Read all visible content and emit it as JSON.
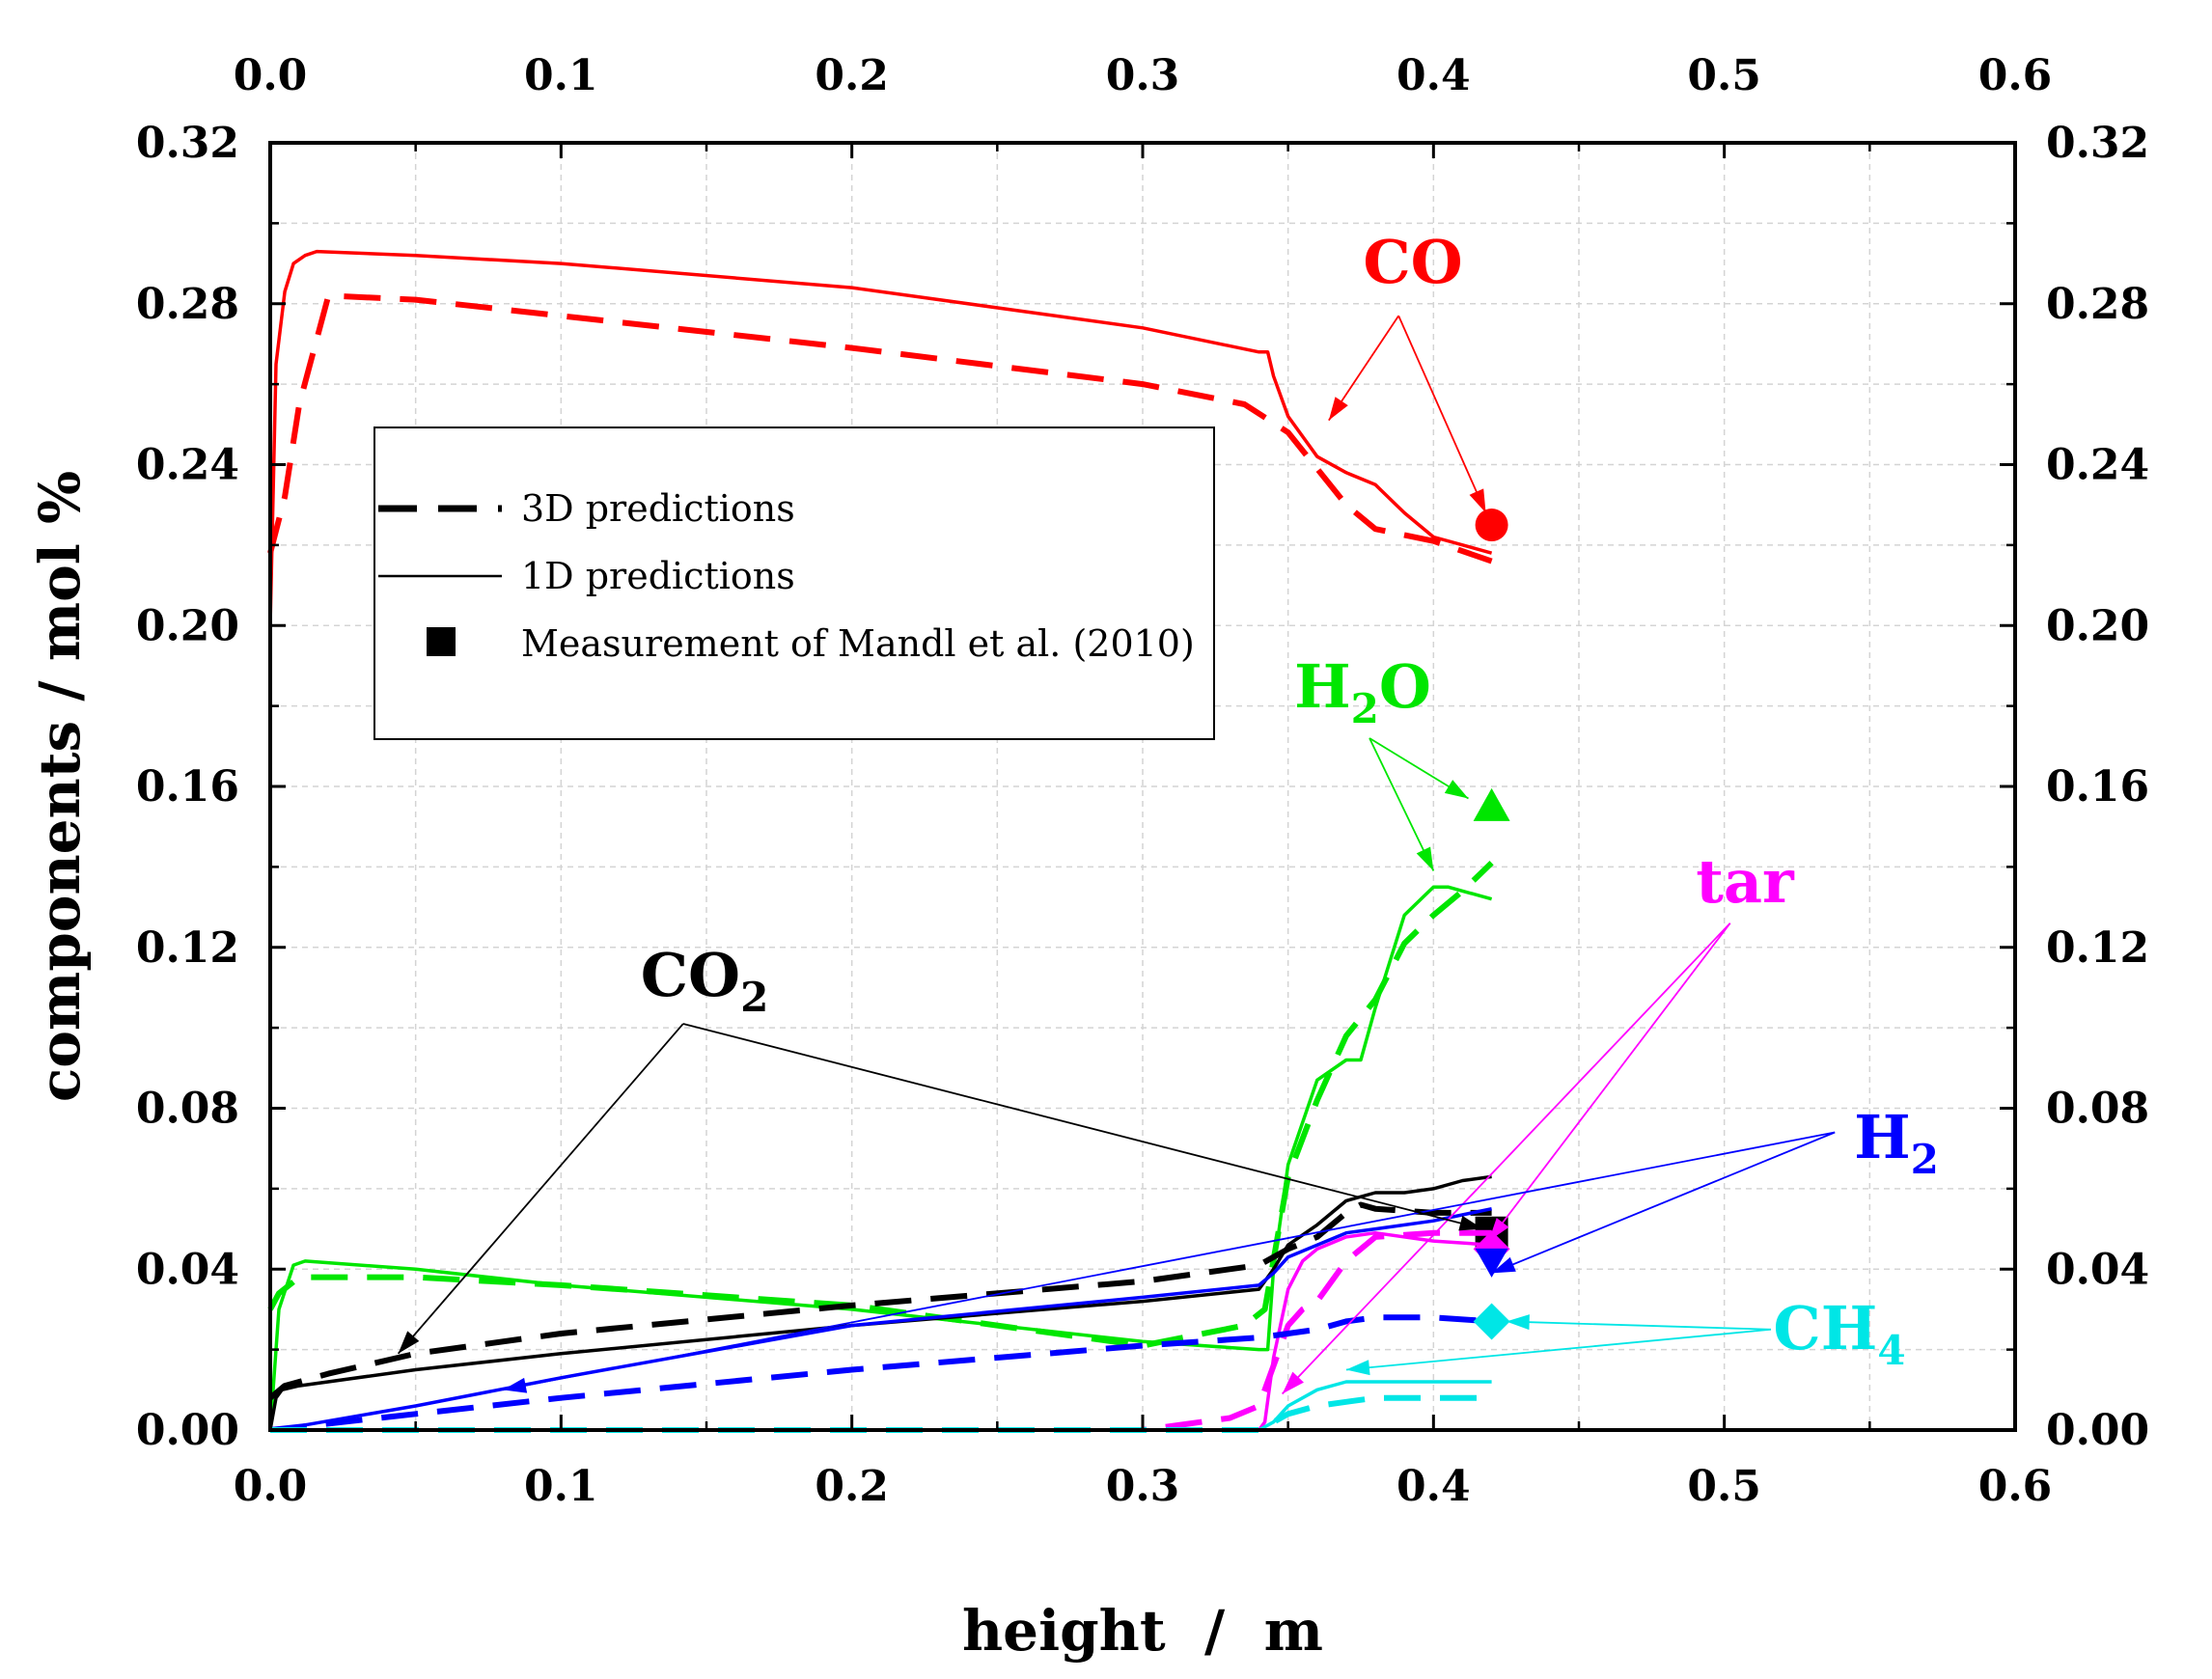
{
  "chart_data": {
    "type": "line",
    "xlabel": "height  /  m",
    "ylabel": "components  /  mol %",
    "xlim": [
      0.0,
      0.6
    ],
    "ylim": [
      0.0,
      0.32
    ],
    "x_ticks": [
      "0.0",
      "0.1",
      "0.2",
      "0.3",
      "0.4",
      "0.5",
      "0.6"
    ],
    "y_ticks": [
      "0.00",
      "0.04",
      "0.08",
      "0.12",
      "0.16",
      "0.20",
      "0.24",
      "0.28",
      "0.32"
    ],
    "grid": true,
    "legend": {
      "position": "upper-left",
      "entries": [
        "3D predictions",
        "1D predictions",
        "Measurement of Mandl et al. (2010)"
      ]
    },
    "series": [
      {
        "name": "CO",
        "color": "#ff0000",
        "label": "CO",
        "label_sub": "",
        "x3d": [
          0.0,
          0.005,
          0.01,
          0.02,
          0.05,
          0.1,
          0.2,
          0.3,
          0.335,
          0.35,
          0.37,
          0.38,
          0.4,
          0.42
        ],
        "y3d": [
          0.218,
          0.232,
          0.255,
          0.282,
          0.281,
          0.277,
          0.269,
          0.26,
          0.255,
          0.248,
          0.23,
          0.224,
          0.221,
          0.216
        ],
        "x1d": [
          0.0,
          0.002,
          0.005,
          0.008,
          0.012,
          0.016,
          0.05,
          0.1,
          0.2,
          0.3,
          0.34,
          0.343,
          0.345,
          0.35,
          0.36,
          0.37,
          0.38,
          0.39,
          0.4,
          0.42
        ],
        "y1d": [
          0.2,
          0.265,
          0.283,
          0.29,
          0.292,
          0.293,
          0.292,
          0.29,
          0.284,
          0.274,
          0.268,
          0.268,
          0.262,
          0.252,
          0.242,
          0.238,
          0.235,
          0.228,
          0.222,
          0.218
        ],
        "meas_x": 0.42,
        "meas_y": 0.225,
        "marker": "circle"
      },
      {
        "name": "H2O",
        "color": "#00e600",
        "label": "H",
        "label_sub": "2",
        "label_tail": "O",
        "x3d": [
          0.0,
          0.003,
          0.01,
          0.05,
          0.1,
          0.2,
          0.3,
          0.335,
          0.342,
          0.35,
          0.36,
          0.37,
          0.38,
          0.39,
          0.4,
          0.41,
          0.42
        ],
        "y3d": [
          0.03,
          0.034,
          0.038,
          0.038,
          0.036,
          0.031,
          0.021,
          0.026,
          0.03,
          0.063,
          0.082,
          0.098,
          0.107,
          0.121,
          0.128,
          0.134,
          0.141
        ],
        "x1d": [
          0.0,
          0.003,
          0.008,
          0.012,
          0.05,
          0.1,
          0.2,
          0.3,
          0.34,
          0.343,
          0.345,
          0.35,
          0.36,
          0.37,
          0.375,
          0.38,
          0.39,
          0.4,
          0.405,
          0.41,
          0.42
        ],
        "y1d": [
          0.0,
          0.03,
          0.041,
          0.042,
          0.04,
          0.036,
          0.03,
          0.022,
          0.02,
          0.02,
          0.04,
          0.066,
          0.087,
          0.092,
          0.092,
          0.105,
          0.128,
          0.135,
          0.135,
          0.134,
          0.132
        ],
        "meas_x": 0.42,
        "meas_y": 0.155,
        "marker": "triangle"
      },
      {
        "name": "CO2",
        "color": "#000000",
        "label": "CO",
        "label_sub": "2",
        "x3d": [
          0.0,
          0.005,
          0.02,
          0.05,
          0.1,
          0.2,
          0.3,
          0.34,
          0.35,
          0.36,
          0.37,
          0.375,
          0.38,
          0.4,
          0.42
        ],
        "y3d": [
          0.008,
          0.011,
          0.014,
          0.019,
          0.024,
          0.031,
          0.037,
          0.041,
          0.045,
          0.048,
          0.054,
          0.056,
          0.055,
          0.054,
          0.054
        ],
        "x1d": [
          0.0,
          0.002,
          0.004,
          0.01,
          0.05,
          0.1,
          0.2,
          0.3,
          0.34,
          0.345,
          0.35,
          0.36,
          0.37,
          0.38,
          0.39,
          0.4,
          0.41,
          0.42
        ],
        "y1d": [
          0.0,
          0.008,
          0.01,
          0.011,
          0.015,
          0.019,
          0.026,
          0.032,
          0.035,
          0.04,
          0.046,
          0.051,
          0.057,
          0.059,
          0.059,
          0.06,
          0.062,
          0.063
        ],
        "meas_x": 0.42,
        "meas_y": 0.049,
        "marker": "square"
      },
      {
        "name": "tar",
        "color": "#ff00ff",
        "label": "tar",
        "label_sub": "",
        "x3d": [
          0.0,
          0.1,
          0.2,
          0.3,
          0.32,
          0.33,
          0.34,
          0.345,
          0.35,
          0.355,
          0.36,
          0.37,
          0.38,
          0.4,
          0.42
        ],
        "y3d": [
          0.0,
          0.0,
          0.0,
          0.0,
          0.002,
          0.003,
          0.006,
          0.016,
          0.026,
          0.03,
          0.032,
          0.042,
          0.048,
          0.049,
          0.049
        ],
        "x1d": [
          0.0,
          0.1,
          0.2,
          0.3,
          0.34,
          0.342,
          0.345,
          0.35,
          0.355,
          0.36,
          0.37,
          0.38,
          0.4,
          0.42
        ],
        "y1d": [
          0.0,
          0.0,
          0.0,
          0.0,
          0.0,
          0.002,
          0.018,
          0.035,
          0.042,
          0.045,
          0.048,
          0.049,
          0.047,
          0.046
        ],
        "meas_x": 0.42,
        "meas_y": 0.045,
        "marker": "diamond"
      },
      {
        "name": "H2",
        "color": "#0000ff",
        "label": "H",
        "label_sub": "2",
        "x3d": [
          0.0,
          0.05,
          0.1,
          0.2,
          0.3,
          0.34,
          0.35,
          0.36,
          0.37,
          0.38,
          0.4,
          0.42
        ],
        "y3d": [
          0.0,
          0.004,
          0.008,
          0.015,
          0.021,
          0.023,
          0.024,
          0.025,
          0.027,
          0.028,
          0.028,
          0.027
        ],
        "x1d": [
          0.0,
          0.01,
          0.05,
          0.1,
          0.2,
          0.3,
          0.34,
          0.345,
          0.35,
          0.36,
          0.37,
          0.38,
          0.4,
          0.42
        ],
        "y1d": [
          0.0,
          0.001,
          0.006,
          0.013,
          0.026,
          0.033,
          0.036,
          0.039,
          0.043,
          0.046,
          0.049,
          0.05,
          0.052,
          0.055
        ],
        "meas_x": 0.42,
        "meas_y": 0.042,
        "marker": "down-triangle"
      },
      {
        "name": "CH4",
        "color": "#00e6e6",
        "label": "CH",
        "label_sub": "4",
        "x3d": [
          0.0,
          0.2,
          0.3,
          0.34,
          0.35,
          0.36,
          0.37,
          0.38,
          0.4,
          0.42
        ],
        "y3d": [
          0.0,
          0.0,
          0.0,
          0.0,
          0.004,
          0.006,
          0.007,
          0.008,
          0.008,
          0.008
        ],
        "x1d": [
          0.0,
          0.2,
          0.3,
          0.34,
          0.345,
          0.35,
          0.36,
          0.37,
          0.38,
          0.4,
          0.42
        ],
        "y1d": [
          0.0,
          0.0,
          0.0,
          0.0,
          0.002,
          0.006,
          0.01,
          0.012,
          0.012,
          0.012,
          0.012
        ],
        "meas_x": 0.42,
        "meas_y": 0.027,
        "marker": "diamond"
      }
    ],
    "annotations": [
      {
        "series": "CO",
        "anchor_x": 0.388,
        "anchor_y": 0.277,
        "targets": [
          [
            0.364,
            0.251
          ],
          [
            0.418,
            0.228
          ]
        ]
      },
      {
        "series": "H2O",
        "anchor_x": 0.378,
        "anchor_y": 0.172,
        "targets": [
          [
            0.412,
            0.157
          ],
          [
            0.4,
            0.139
          ]
        ]
      },
      {
        "series": "tar",
        "anchor_x": 0.502,
        "anchor_y": 0.126,
        "targets": [
          [
            0.348,
            0.009
          ],
          [
            0.419,
            0.047
          ]
        ]
      },
      {
        "series": "H2",
        "anchor_x": 0.538,
        "anchor_y": 0.074,
        "targets": [
          [
            0.08,
            0.01
          ],
          [
            0.42,
            0.039
          ]
        ]
      },
      {
        "series": "CH4",
        "anchor_x": 0.516,
        "anchor_y": 0.025,
        "targets": [
          [
            0.37,
            0.015
          ],
          [
            0.425,
            0.027
          ]
        ]
      },
      {
        "series": "CO2",
        "anchor_x": 0.142,
        "anchor_y": 0.101,
        "targets": [
          [
            0.044,
            0.019
          ],
          [
            0.417,
            0.05
          ]
        ]
      }
    ]
  }
}
